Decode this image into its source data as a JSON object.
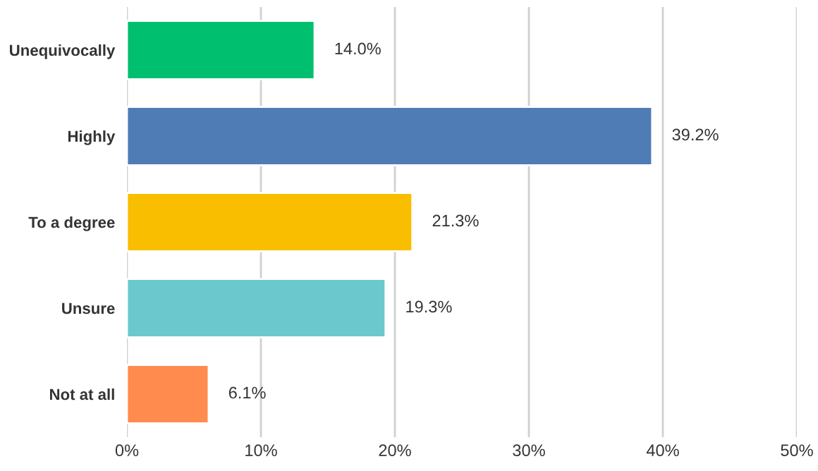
{
  "chart_data": {
    "type": "bar",
    "orientation": "horizontal",
    "categories": [
      "Unequivocally",
      "Highly",
      "To a degree",
      "Unsure",
      "Not at all"
    ],
    "values": [
      14.0,
      39.2,
      21.3,
      19.3,
      6.1
    ],
    "colors": [
      "#00bf6f",
      "#507cb6",
      "#f9be00",
      "#6bc8cd",
      "#ff8b4f"
    ],
    "value_labels": [
      "14.0%",
      "39.2%",
      "21.3%",
      "19.3%",
      "6.1%"
    ],
    "xlim": [
      0,
      50
    ],
    "xticks": [
      {
        "value": 0,
        "label": "0%"
      },
      {
        "value": 10,
        "label": "10%"
      },
      {
        "value": 20,
        "label": "20%"
      },
      {
        "value": 30,
        "label": "30%"
      },
      {
        "value": 40,
        "label": "40%"
      },
      {
        "value": 50,
        "label": "50%"
      }
    ],
    "grid": "x"
  }
}
